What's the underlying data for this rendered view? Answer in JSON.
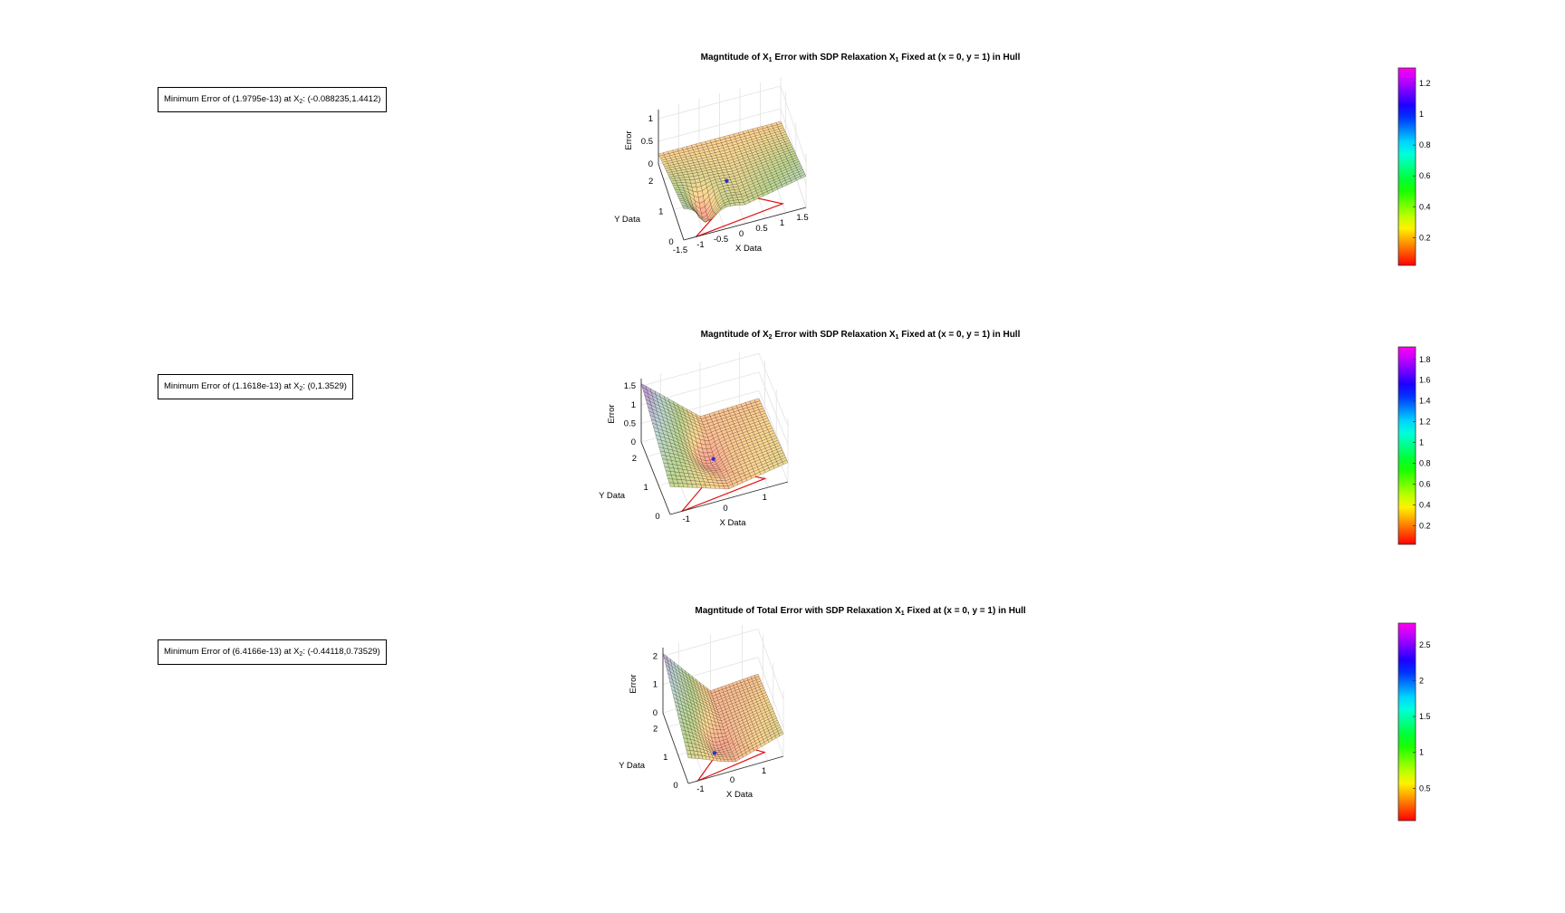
{
  "panels": [
    {
      "title_parts": [
        "Magntitude of X",
        "1",
        " Error with SDP Relaxation X",
        "1",
        " Fixed at (x = 0, y = 1) in Hull"
      ],
      "annotation_parts": [
        "Minimum Error of (1.9795e-13) at X",
        "2",
        ": (-0.088235,1.4412)"
      ]
    },
    {
      "title_parts": [
        "Magntitude of X",
        "2",
        " Error with SDP Relaxation X",
        "1",
        " Fixed at (x = 0, y = 1) in Hull"
      ],
      "annotation_parts": [
        "Minimum Error of (1.1618e-13) at X",
        "2",
        ": (0,1.3529)"
      ]
    },
    {
      "title_parts": [
        "Magntitude of Total Error with SDP Relaxation X",
        "1",
        " Fixed at (x = 0, y = 1) in Hull"
      ],
      "annotation_parts": [
        "Minimum Error of (6.4166e-13) at X",
        "2",
        ": (-0.44118,0.73529)"
      ]
    }
  ],
  "chart_data": [
    {
      "type": "surface",
      "xlabel": "X Data",
      "ylabel": "Y Data",
      "zlabel": "Error",
      "x_ticks": [
        "-1.5",
        "-1",
        "-0.5",
        "0",
        "0.5",
        "1",
        "1.5"
      ],
      "y_ticks": [
        "0",
        "1",
        "2"
      ],
      "z_ticks": [
        "0",
        "0.5",
        "1"
      ],
      "xlim": [
        -1.5,
        1.5
      ],
      "ylim": [
        0,
        2.5
      ],
      "zlim": [
        0,
        1.2
      ],
      "minimum": {
        "x": -0.088235,
        "y": 1.4412,
        "z": 1.9795e-13
      },
      "colorbar": {
        "ticks": [
          "0.2",
          "0.4",
          "0.6",
          "0.8",
          "1",
          "1.2"
        ],
        "tick_values": [
          0.2,
          0.4,
          0.6,
          0.8,
          1.0,
          1.2
        ],
        "range": [
          0.02,
          1.3
        ]
      },
      "hull_triangle": [
        [
          -1.2,
          0
        ],
        [
          1.0,
          0.3
        ],
        [
          0,
          1
        ]
      ],
      "grid": true
    },
    {
      "type": "surface",
      "xlabel": "X Data",
      "ylabel": "Y Data",
      "zlabel": "Error",
      "x_ticks": [
        "-1",
        "0",
        "1"
      ],
      "y_ticks": [
        "0",
        "1",
        "2"
      ],
      "z_ticks": [
        "0",
        "0.5",
        "1",
        "1.5"
      ],
      "xlim": [
        -1.5,
        1.5
      ],
      "ylim": [
        0,
        2.5
      ],
      "zlim": [
        0,
        1.7
      ],
      "minimum": {
        "x": 0,
        "y": 1.3529,
        "z": 1.1618e-13
      },
      "colorbar": {
        "ticks": [
          "0.2",
          "0.4",
          "0.6",
          "0.8",
          "1",
          "1.2",
          "1.4",
          "1.6",
          "1.8"
        ],
        "tick_values": [
          0.2,
          0.4,
          0.6,
          0.8,
          1.0,
          1.2,
          1.4,
          1.6,
          1.8
        ],
        "range": [
          0.02,
          1.92
        ]
      },
      "hull_triangle": [
        [
          -1.2,
          0
        ],
        [
          1.0,
          0.3
        ],
        [
          0,
          1
        ]
      ],
      "grid": true
    },
    {
      "type": "surface",
      "xlabel": "X Data",
      "ylabel": "Y Data",
      "zlabel": "Error",
      "x_ticks": [
        "-1",
        "0",
        "1"
      ],
      "y_ticks": [
        "0",
        "1",
        "2"
      ],
      "z_ticks": [
        "0",
        "1",
        "2"
      ],
      "xlim": [
        -1.5,
        1.5
      ],
      "ylim": [
        0,
        2.5
      ],
      "zlim": [
        0,
        2.3
      ],
      "minimum": {
        "x": -0.44118,
        "y": 0.73529,
        "z": 6.4166e-13
      },
      "colorbar": {
        "ticks": [
          "0.5",
          "1",
          "1.5",
          "2",
          "2.5"
        ],
        "tick_values": [
          0.5,
          1.0,
          1.5,
          2.0,
          2.5
        ],
        "range": [
          0.05,
          2.8
        ]
      },
      "hull_triangle": [
        [
          -1.2,
          0
        ],
        [
          1.0,
          0.3
        ],
        [
          0,
          1
        ]
      ],
      "grid": true
    }
  ]
}
